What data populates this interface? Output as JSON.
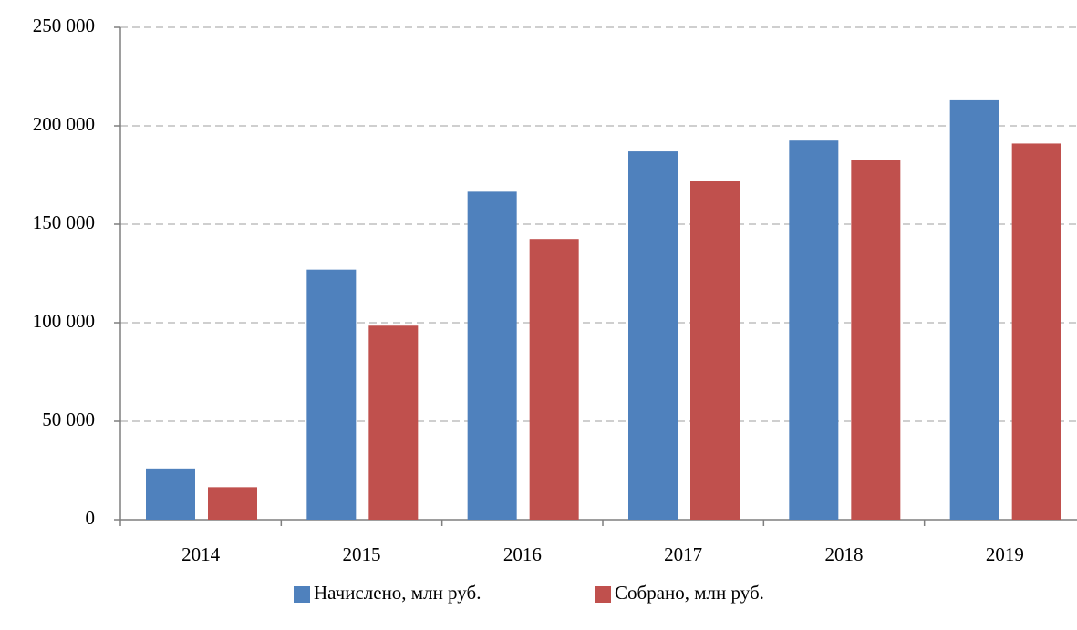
{
  "chart_data": {
    "type": "bar",
    "categories": [
      "2014",
      "2015",
      "2016",
      "2017",
      "2018",
      "2019"
    ],
    "series": [
      {
        "name": "Начислено, млн руб.",
        "color": "#4f81bd",
        "values": [
          26000,
          127000,
          166500,
          187000,
          192500,
          213000
        ]
      },
      {
        "name": "Собрано, млн руб.",
        "color": "#c0504d",
        "values": [
          16500,
          98500,
          142500,
          172000,
          182500,
          191000
        ]
      }
    ],
    "ylim": [
      0,
      250000
    ],
    "yticks": [
      0,
      {
        "value": 50000,
        "label": "50 000"
      },
      {
        "value": 100000,
        "label": "100 000"
      },
      {
        "value": 150000,
        "label": "150 000"
      },
      {
        "value": 200000,
        "label": "200 000"
      },
      {
        "value": 250000,
        "label": "250 000"
      }
    ],
    "grid": true,
    "legend": "bottom"
  }
}
